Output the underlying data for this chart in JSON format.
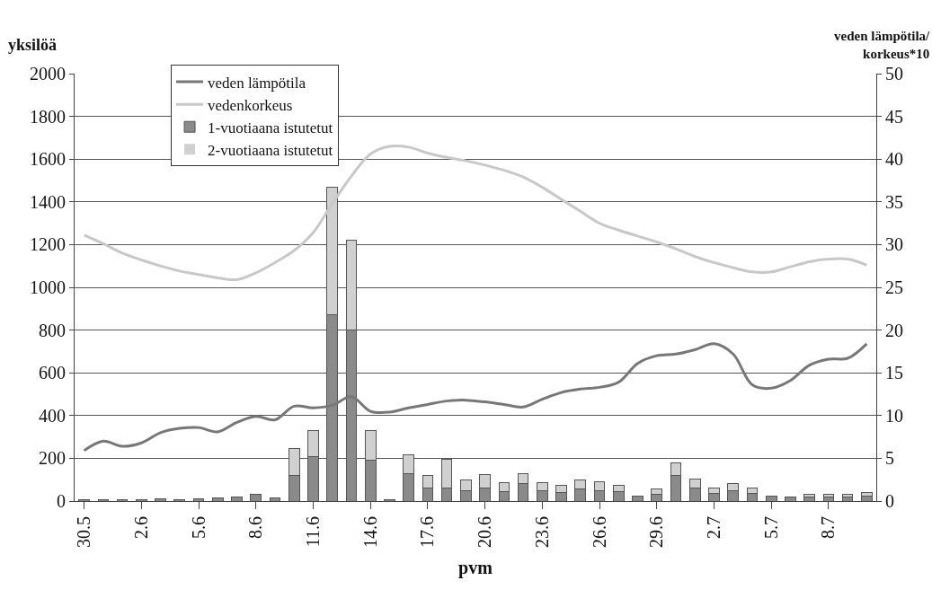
{
  "chart_data": {
    "type": "bar",
    "stacked": true,
    "xlabel": "pvm",
    "ylabel": "yksilöä",
    "y2label": "veden lämpötila/\nkorkeus*10",
    "categories": [
      "30.5",
      null,
      null,
      "2.6",
      null,
      null,
      "5.6",
      null,
      null,
      "8.6",
      null,
      null,
      "11.6",
      null,
      null,
      "14.6",
      null,
      null,
      "17.6",
      null,
      null,
      "20.6",
      null,
      null,
      "23.6",
      null,
      null,
      "26.6",
      null,
      null,
      "29.6",
      null,
      null,
      "2.7",
      null,
      null,
      "5.7",
      null,
      null,
      "8.7",
      null,
      null
    ],
    "series": [
      {
        "name": "veden lämpötila",
        "type": "line",
        "axis": "y2",
        "color": "#777777",
        "values": [
          5.9,
          7.0,
          6.4,
          6.8,
          8.0,
          8.5,
          8.6,
          8.1,
          9.2,
          9.9,
          9.5,
          11.1,
          10.9,
          11.2,
          12.2,
          10.5,
          10.4,
          10.9,
          11.3,
          11.7,
          11.8,
          11.6,
          11.3,
          11.0,
          11.9,
          12.7,
          13.1,
          13.3,
          13.9,
          16.1,
          17.0,
          17.2,
          17.7,
          18.4,
          17.2,
          13.6,
          13.2,
          14.1,
          15.9,
          16.6,
          16.7,
          18.4
        ]
      },
      {
        "name": "vedenkorkeus",
        "type": "line",
        "axis": "y2",
        "color": "#c8c8c8",
        "values": [
          31.1,
          30.1,
          29.0,
          28.2,
          27.5,
          26.9,
          26.5,
          26.1,
          25.9,
          26.7,
          27.9,
          29.3,
          31.4,
          34.8,
          38.0,
          40.6,
          41.5,
          41.4,
          40.7,
          40.2,
          39.8,
          39.3,
          38.7,
          37.9,
          36.7,
          35.3,
          33.9,
          32.5,
          31.7,
          31.0,
          30.3,
          29.5,
          28.6,
          27.9,
          27.3,
          26.8,
          26.8,
          27.4,
          28.0,
          28.3,
          28.3,
          27.6
        ]
      },
      {
        "name": "1-vuotiaana istutetut",
        "color": "#8a8a8a",
        "values": [
          8,
          5,
          5,
          5,
          10,
          8,
          10,
          14,
          20,
          30,
          14,
          120,
          210,
          870,
          800,
          190,
          5,
          130,
          60,
          60,
          50,
          60,
          45,
          80,
          50,
          40,
          55,
          50,
          45,
          25,
          30,
          120,
          60,
          35,
          50,
          35,
          25,
          18,
          20,
          20,
          20,
          25
        ]
      },
      {
        "name": "2-vuotiaana istutetut",
        "color": "#d0d0d0",
        "values": [
          0,
          0,
          0,
          0,
          0,
          0,
          0,
          0,
          0,
          0,
          0,
          125,
          120,
          600,
          420,
          140,
          0,
          85,
          60,
          135,
          48,
          62,
          40,
          50,
          35,
          35,
          45,
          40,
          30,
          0,
          25,
          60,
          45,
          25,
          30,
          25,
          0,
          0,
          10,
          10,
          12,
          13
        ]
      }
    ],
    "ylim": [
      0,
      2000
    ],
    "yticks": [
      0,
      200,
      400,
      600,
      800,
      1000,
      1200,
      1400,
      1600,
      1800,
      2000
    ],
    "y2lim": [
      0,
      50
    ],
    "y2ticks": [
      0,
      5,
      10,
      15,
      20,
      25,
      30,
      35,
      40,
      45,
      50
    ],
    "grid": "y",
    "legend": "top left"
  }
}
